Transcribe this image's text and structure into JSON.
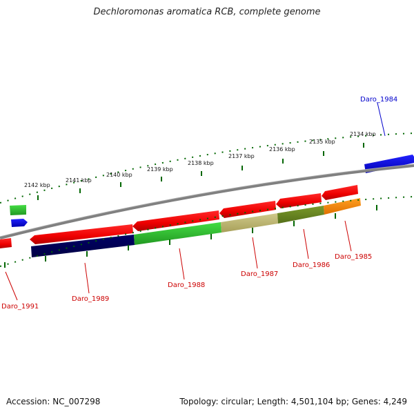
{
  "title": "Dechloromonas aromatica RCB, complete genome",
  "footer": {
    "accession": "Accession: NC_007298",
    "summary": "Topology: circular; Length: 4,501,104 bp; Genes: 4,249"
  },
  "kbp_labels": [
    "2142 kbp",
    "2141 kbp",
    "2140 kbp",
    "2139 kbp",
    "2138 kbp",
    "2137 kbp",
    "2136 kbp",
    "2135 kbp",
    "2134 kbp"
  ],
  "genes": [
    {
      "id": "Daro_1984",
      "color": "#0000cc"
    },
    {
      "id": "Daro_1985",
      "color": "#cc0000"
    },
    {
      "id": "Daro_1986",
      "color": "#cc0000"
    },
    {
      "id": "Daro_1987",
      "color": "#cc0000"
    },
    {
      "id": "Daro_1988",
      "color": "#cc0000"
    },
    {
      "id": "Daro_1989",
      "color": "#cc0000"
    },
    {
      "id": "Daro_1991",
      "color": "#cc0000"
    }
  ],
  "colors": {
    "backbone": "#808080",
    "ticks": "#006600",
    "red": "#ff0000",
    "blue": "#0000ff",
    "green": "#33cc33",
    "navy": "#000066",
    "khaki": "#bdb76b",
    "olive": "#6b8e23",
    "orange": "#ff8c00"
  }
}
